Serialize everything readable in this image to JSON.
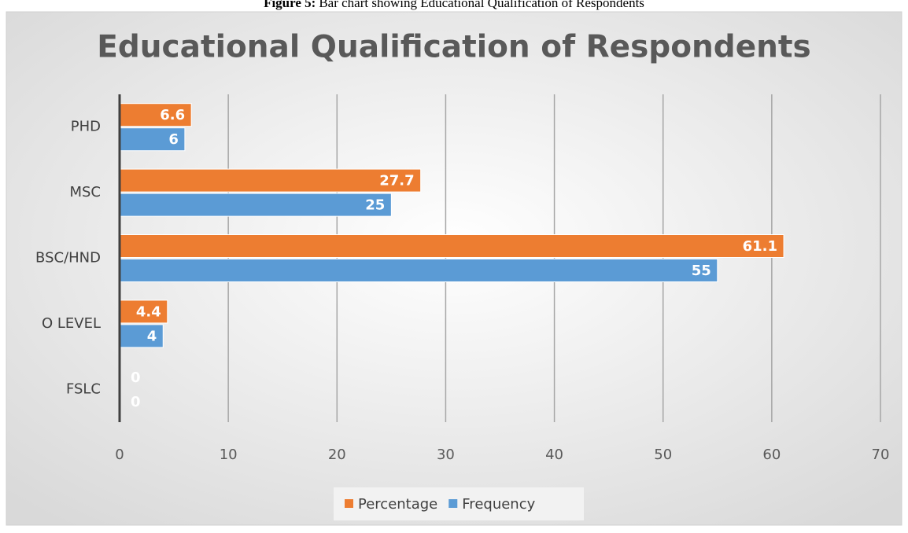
{
  "figure": {
    "label": "Figure 5:",
    "caption": "Bar chart showing Educational Qualification of Respondents"
  },
  "chart_data": {
    "type": "bar",
    "orientation": "horizontal",
    "title": "Educational Qualification of Respondents",
    "categories": [
      "PHD",
      "MSC",
      "BSC/HND",
      "O LEVEL",
      "FSLC"
    ],
    "series": [
      {
        "name": "Percentage",
        "color": "#ed7d31",
        "values": [
          6.6,
          27.7,
          61.1,
          4.4,
          0
        ]
      },
      {
        "name": "Frequency",
        "color": "#5b9bd5",
        "values": [
          6,
          25,
          55,
          4,
          0
        ]
      }
    ],
    "xlim": [
      0,
      70
    ],
    "xticks": [
      0,
      10,
      20,
      30,
      40,
      50,
      60,
      70
    ],
    "grid": true,
    "data_labels": true,
    "legend": "bottom"
  }
}
